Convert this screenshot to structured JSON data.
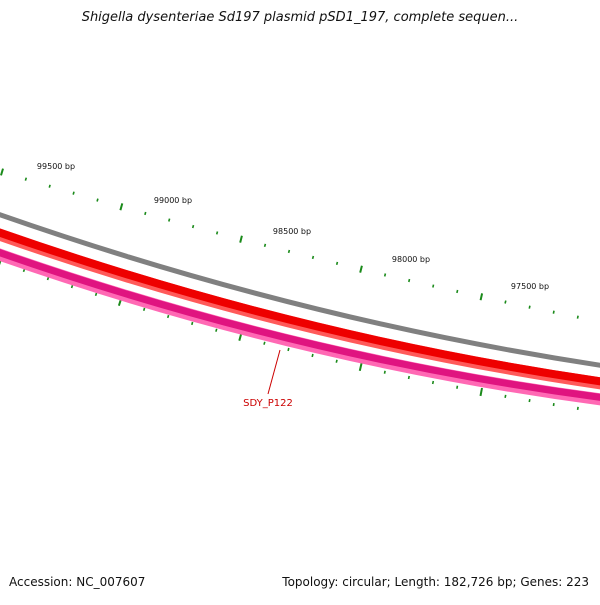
{
  "title": "Shigella dysenteriae Sd197 plasmid pSD1_197, complete sequen...",
  "scale_labels": [
    "99500 bp",
    "99000 bp",
    "98500 bp",
    "98000 bp",
    "97500 bp"
  ],
  "feature_label": "SDY_P122",
  "footer": {
    "accession": "Accession: NC_007607",
    "summary": "Topology: circular; Length: 182,726 bp; Genes: 223"
  },
  "colors": {
    "backbone": "#808080",
    "cds_track": "#ff0000",
    "gene_track": "#ff1493",
    "ticks": "#1a8a1a",
    "feature_label": "#cc0000"
  }
}
